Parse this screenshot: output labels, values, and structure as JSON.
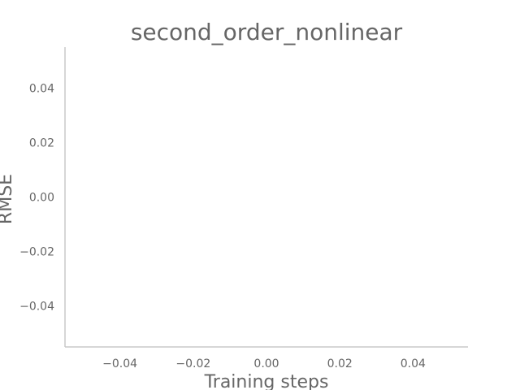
{
  "chart_data": {
    "type": "line",
    "title": "second_order_nonlinear",
    "xlabel": "Training steps",
    "ylabel": "RMSE",
    "xlim": [
      -0.055,
      0.055
    ],
    "ylim": [
      -0.055,
      0.055
    ],
    "x_ticks": [
      {
        "value": -0.04,
        "label": "−0.04"
      },
      {
        "value": -0.02,
        "label": "−0.02"
      },
      {
        "value": 0.0,
        "label": "0.00"
      },
      {
        "value": 0.02,
        "label": "0.02"
      },
      {
        "value": 0.04,
        "label": "0.04"
      }
    ],
    "y_ticks": [
      {
        "value": 0.04,
        "label": "0.04"
      },
      {
        "value": 0.02,
        "label": "0.02"
      },
      {
        "value": 0.0,
        "label": "0.00"
      },
      {
        "value": -0.02,
        "label": "−0.02"
      },
      {
        "value": -0.04,
        "label": "−0.04"
      }
    ],
    "series": [],
    "grid": false,
    "legend": "none",
    "colors": {
      "text": "#666666",
      "spine": "#c8c8c8",
      "background": "#ffffff"
    }
  }
}
